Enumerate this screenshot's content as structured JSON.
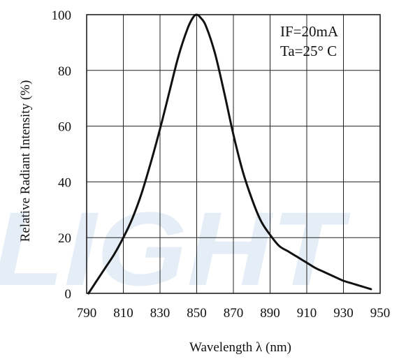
{
  "chart_data": {
    "type": "line",
    "xlabel": "Wavelength λ (nm)",
    "ylabel": "Relative Radiant Intensity (%)",
    "xlim": [
      790,
      950
    ],
    "ylim": [
      0,
      100
    ],
    "x_ticks": [
      "790",
      "810",
      "830",
      "850",
      "870",
      "890",
      "910",
      "930",
      "950"
    ],
    "y_ticks": [
      "0",
      "20",
      "40",
      "60",
      "80",
      "100"
    ],
    "grid": true,
    "annotations": [
      "IF=20mA",
      "Ta=25°  C"
    ],
    "watermark": "LIGHT",
    "watermark_color": "#dbe8f5",
    "line_color": "#111111",
    "series": [
      {
        "x": [
          791,
          795,
          800,
          805,
          810,
          815,
          820,
          825,
          830,
          835,
          840,
          845,
          848,
          850,
          852,
          855,
          860,
          865,
          870,
          875,
          880,
          885,
          890,
          895,
          900,
          905,
          910,
          915,
          920,
          925,
          930,
          935,
          940,
          945
        ],
        "values": [
          0,
          4,
          9,
          14,
          20,
          27,
          36,
          47,
          59,
          72,
          85,
          95,
          99,
          100,
          99,
          96,
          86,
          72,
          57,
          44,
          34,
          26,
          21,
          17,
          15,
          13,
          11,
          9,
          7.5,
          6,
          4.5,
          3.5,
          2.5,
          1.5
        ]
      }
    ]
  }
}
